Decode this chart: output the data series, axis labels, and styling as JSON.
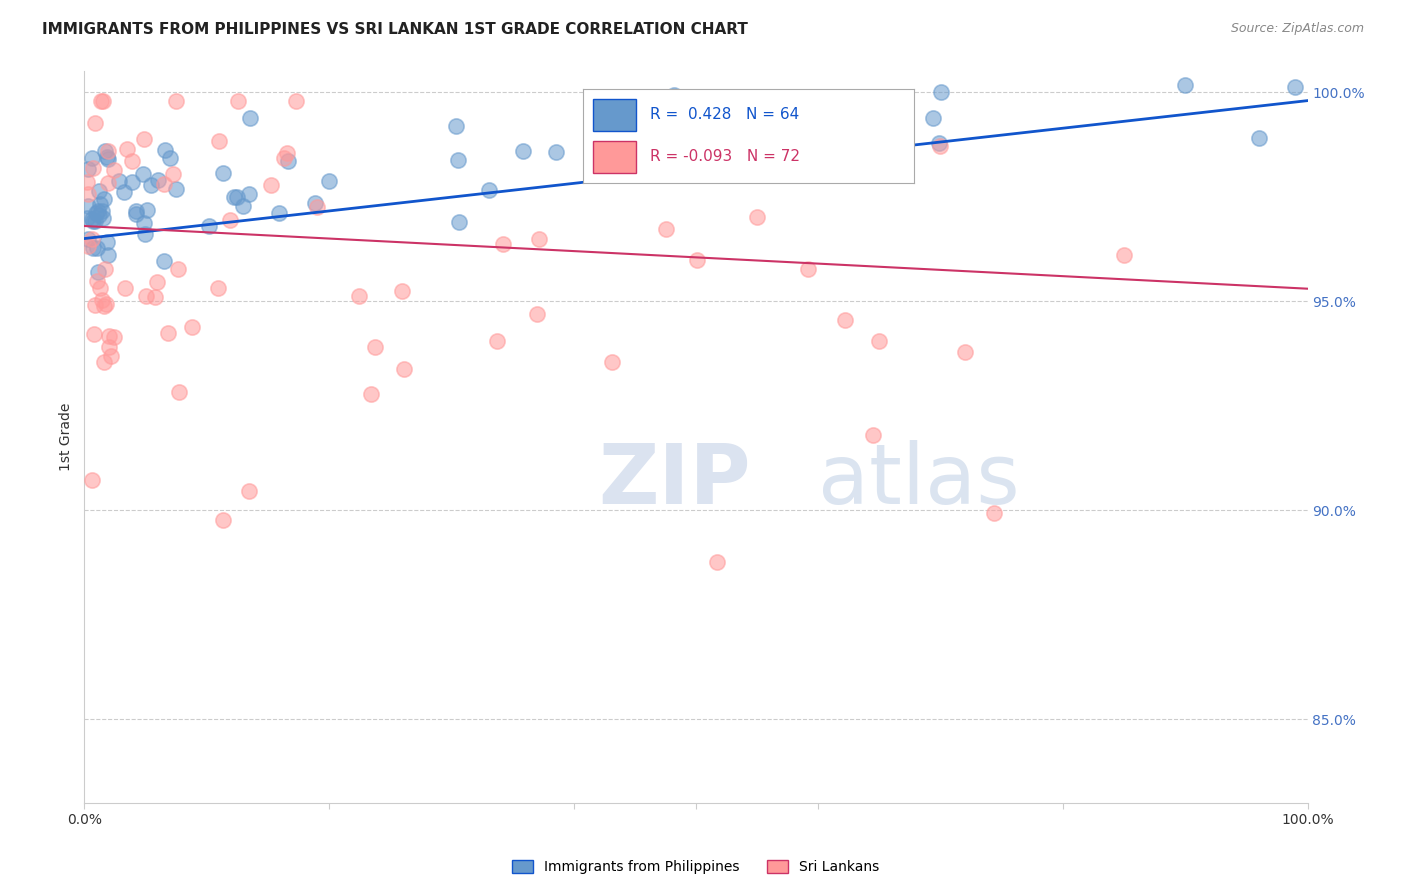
{
  "title": "IMMIGRANTS FROM PHILIPPINES VS SRI LANKAN 1ST GRADE CORRELATION CHART",
  "source": "Source: ZipAtlas.com",
  "ylabel": "1st Grade",
  "legend_blue_r": "0.428",
  "legend_blue_n": "64",
  "legend_pink_r": "-0.093",
  "legend_pink_n": "72",
  "legend_blue_label": "Immigrants from Philippines",
  "legend_pink_label": "Sri Lankans",
  "blue_color": "#6699CC",
  "pink_color": "#FF9999",
  "line_blue_color": "#1155CC",
  "line_pink_color": "#CC3366",
  "blue_line_start_y": 0.965,
  "blue_line_end_y": 0.998,
  "pink_line_start_y": 0.968,
  "pink_line_end_y": 0.953,
  "xlim": [
    0.0,
    1.0
  ],
  "ylim": [
    0.83,
    1.005
  ],
  "grid_yticks": [
    0.85,
    0.9,
    0.95,
    1.0
  ],
  "background_color": "#ffffff",
  "marker_size": 120,
  "n_blue": 64,
  "n_pink": 72
}
